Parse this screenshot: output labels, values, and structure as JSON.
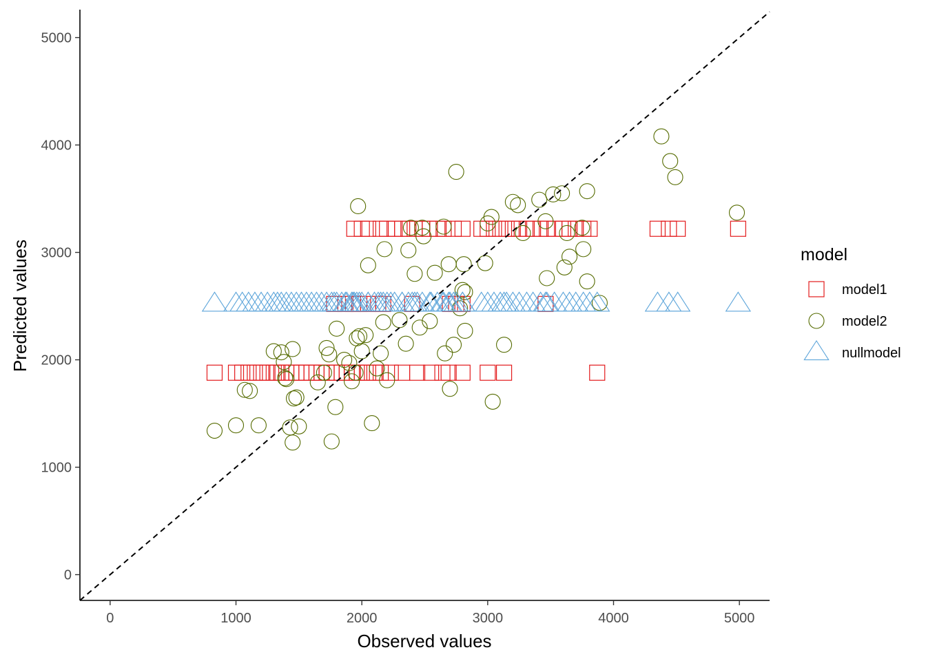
{
  "chart_data": {
    "type": "scatter",
    "xlabel": "Observed values",
    "ylabel": "Predicted values",
    "xlim": [
      -240,
      5240
    ],
    "ylim": [
      -240,
      5260
    ],
    "x_ticks": [
      0,
      1000,
      2000,
      3000,
      4000,
      5000
    ],
    "y_ticks": [
      0,
      1000,
      2000,
      3000,
      4000,
      5000
    ],
    "x_tick_labels": [
      "0",
      "1000",
      "2000",
      "3000",
      "4000",
      "5000"
    ],
    "y_tick_labels": [
      "0",
      "1000",
      "2000",
      "3000",
      "4000",
      "5000"
    ],
    "grid": false,
    "reference_line": {
      "type": "identity",
      "slope": 1,
      "intercept": 0,
      "style": "dashed",
      "color": "#000000"
    },
    "legend": {
      "title": "model",
      "position": "right"
    },
    "series": [
      {
        "name": "model1",
        "shape": "square",
        "color": "#E31A1C",
        "points": [
          [
            830,
            1880
          ],
          [
            1000,
            1880
          ],
          [
            1050,
            1880
          ],
          [
            1100,
            1880
          ],
          [
            1150,
            1880
          ],
          [
            1200,
            1880
          ],
          [
            1250,
            1880
          ],
          [
            1300,
            1880
          ],
          [
            1330,
            1880
          ],
          [
            1360,
            1880
          ],
          [
            1400,
            1880
          ],
          [
            1440,
            1880
          ],
          [
            1480,
            1880
          ],
          [
            1520,
            1880
          ],
          [
            1560,
            1880
          ],
          [
            1600,
            1880
          ],
          [
            1640,
            1880
          ],
          [
            1680,
            1880
          ],
          [
            1720,
            1880
          ],
          [
            1760,
            1880
          ],
          [
            1800,
            1880
          ],
          [
            1840,
            1880
          ],
          [
            1880,
            1880
          ],
          [
            1920,
            1880
          ],
          [
            1960,
            1880
          ],
          [
            2000,
            1880
          ],
          [
            2050,
            1880
          ],
          [
            2100,
            1880
          ],
          [
            2150,
            1880
          ],
          [
            2230,
            1880
          ],
          [
            2320,
            1880
          ],
          [
            2440,
            1880
          ],
          [
            2550,
            1880
          ],
          [
            2640,
            1880
          ],
          [
            2690,
            1880
          ],
          [
            2800,
            1880
          ],
          [
            3000,
            1880
          ],
          [
            3130,
            1880
          ],
          [
            3870,
            1880
          ],
          [
            1780,
            2520
          ],
          [
            1870,
            2520
          ],
          [
            1930,
            2520
          ],
          [
            1980,
            2520
          ],
          [
            2050,
            2520
          ],
          [
            2130,
            2520
          ],
          [
            2170,
            2520
          ],
          [
            2400,
            2520
          ],
          [
            2700,
            2520
          ],
          [
            2750,
            2520
          ],
          [
            2800,
            2520
          ],
          [
            3460,
            2520
          ],
          [
            1940,
            3220
          ],
          [
            2000,
            3220
          ],
          [
            2050,
            3220
          ],
          [
            2150,
            3220
          ],
          [
            2200,
            3220
          ],
          [
            2260,
            3220
          ],
          [
            2320,
            3220
          ],
          [
            2370,
            3220
          ],
          [
            2420,
            3220
          ],
          [
            2480,
            3220
          ],
          [
            2540,
            3220
          ],
          [
            2600,
            3220
          ],
          [
            2650,
            3220
          ],
          [
            2730,
            3220
          ],
          [
            2800,
            3220
          ],
          [
            2950,
            3220
          ],
          [
            3000,
            3220
          ],
          [
            3050,
            3220
          ],
          [
            3100,
            3220
          ],
          [
            3150,
            3220
          ],
          [
            3200,
            3220
          ],
          [
            3250,
            3220
          ],
          [
            3310,
            3220
          ],
          [
            3360,
            3220
          ],
          [
            3420,
            3220
          ],
          [
            3470,
            3220
          ],
          [
            3530,
            3220
          ],
          [
            3600,
            3220
          ],
          [
            3650,
            3220
          ],
          [
            3700,
            3220
          ],
          [
            3760,
            3220
          ],
          [
            3810,
            3220
          ],
          [
            4350,
            3220
          ],
          [
            4440,
            3220
          ],
          [
            4510,
            3220
          ],
          [
            4990,
            3220
          ]
        ]
      },
      {
        "name": "model2",
        "shape": "circle",
        "color": "#556B00",
        "points": [
          [
            830,
            1340
          ],
          [
            1000,
            1390
          ],
          [
            1180,
            1390
          ],
          [
            1070,
            1720
          ],
          [
            1110,
            1710
          ],
          [
            1300,
            2080
          ],
          [
            1360,
            2070
          ],
          [
            1380,
            1980
          ],
          [
            1390,
            1830
          ],
          [
            1430,
            1370
          ],
          [
            1450,
            1230
          ],
          [
            1460,
            1640
          ],
          [
            1480,
            1650
          ],
          [
            1500,
            1380
          ],
          [
            1450,
            2100
          ],
          [
            1400,
            1820
          ],
          [
            1650,
            1790
          ],
          [
            1700,
            1880
          ],
          [
            1720,
            2110
          ],
          [
            1740,
            2050
          ],
          [
            1760,
            1240
          ],
          [
            1790,
            1560
          ],
          [
            1800,
            2290
          ],
          [
            1860,
            2000
          ],
          [
            1900,
            1970
          ],
          [
            1920,
            1800
          ],
          [
            1950,
            1880
          ],
          [
            1960,
            2200
          ],
          [
            1980,
            2220
          ],
          [
            2000,
            2080
          ],
          [
            2030,
            2230
          ],
          [
            2080,
            1410
          ],
          [
            2120,
            1920
          ],
          [
            2150,
            2060
          ],
          [
            2170,
            2350
          ],
          [
            2200,
            1810
          ],
          [
            2300,
            2370
          ],
          [
            2350,
            2150
          ],
          [
            2460,
            2300
          ],
          [
            2540,
            2360
          ],
          [
            2660,
            2060
          ],
          [
            2700,
            1730
          ],
          [
            2730,
            2140
          ],
          [
            2780,
            2480
          ],
          [
            2800,
            2650
          ],
          [
            2820,
            2630
          ],
          [
            2820,
            2270
          ],
          [
            1970,
            3430
          ],
          [
            2050,
            2880
          ],
          [
            2180,
            3030
          ],
          [
            2370,
            3020
          ],
          [
            2390,
            3230
          ],
          [
            2420,
            2800
          ],
          [
            2480,
            3230
          ],
          [
            2490,
            3150
          ],
          [
            2580,
            2810
          ],
          [
            2650,
            3240
          ],
          [
            2690,
            2890
          ],
          [
            2750,
            3750
          ],
          [
            2810,
            2890
          ],
          [
            2980,
            2900
          ],
          [
            3000,
            3270
          ],
          [
            3030,
            3330
          ],
          [
            3040,
            1610
          ],
          [
            3130,
            2140
          ],
          [
            3200,
            3470
          ],
          [
            3240,
            3440
          ],
          [
            3280,
            3180
          ],
          [
            3410,
            3490
          ],
          [
            3460,
            3290
          ],
          [
            3470,
            2760
          ],
          [
            3520,
            3540
          ],
          [
            3590,
            3550
          ],
          [
            3610,
            2860
          ],
          [
            3630,
            3180
          ],
          [
            3650,
            2960
          ],
          [
            3750,
            3230
          ],
          [
            3760,
            3030
          ],
          [
            3790,
            3570
          ],
          [
            3790,
            2730
          ],
          [
            3890,
            2530
          ],
          [
            4380,
            4080
          ],
          [
            4450,
            3850
          ],
          [
            4490,
            3700
          ],
          [
            4980,
            3370
          ]
        ]
      },
      {
        "name": "nullmodel",
        "shape": "triangle",
        "color": "#5DA5DA",
        "y_constant": 2520,
        "x": [
          830,
          1000,
          1050,
          1100,
          1150,
          1200,
          1250,
          1300,
          1330,
          1360,
          1400,
          1440,
          1480,
          1520,
          1560,
          1600,
          1640,
          1680,
          1720,
          1760,
          1800,
          1840,
          1880,
          1920,
          1960,
          2000,
          2050,
          2100,
          2150,
          2230,
          2320,
          2440,
          2550,
          2640,
          2690,
          2800,
          3000,
          3130,
          3870,
          1780,
          1870,
          1930,
          1980,
          2050,
          2130,
          2170,
          2400,
          2700,
          2750,
          2800,
          3460,
          1940,
          2200,
          2260,
          2320,
          2370,
          2420,
          2480,
          2540,
          2600,
          2650,
          2730,
          2950,
          3050,
          3100,
          3150,
          3200,
          3250,
          3310,
          3360,
          3420,
          3470,
          3530,
          3600,
          3650,
          3700,
          3760,
          3810,
          4350,
          4440,
          4510,
          4990
        ]
      }
    ]
  }
}
